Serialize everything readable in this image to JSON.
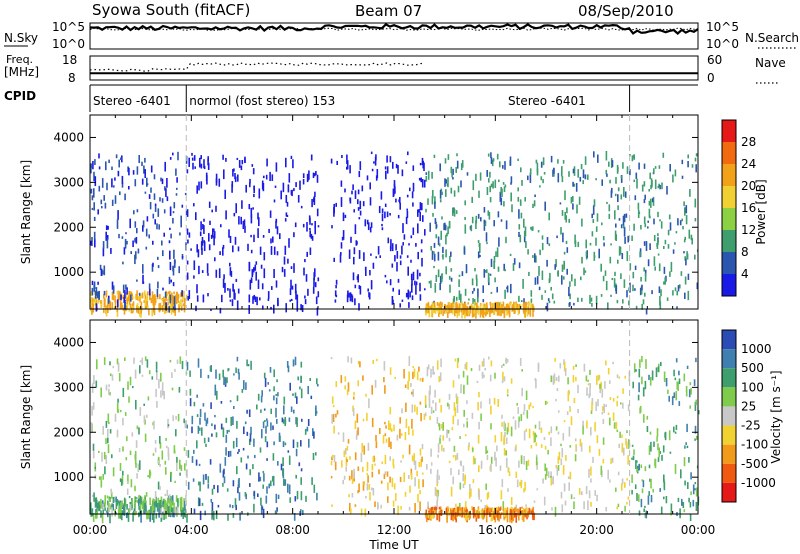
{
  "header": {
    "title": "Syowa South (fitACF)",
    "beam": "Beam 07",
    "date": "08/Sep/2010"
  },
  "noise_panel": {
    "left_label": "N.Sky",
    "right_label": "N.Search",
    "left_ticks": [
      "10^5",
      "10^0"
    ],
    "right_ticks": [
      "10^5",
      "10^0"
    ]
  },
  "freq_panel": {
    "left_label_line1": "Freq.",
    "left_label_line2": "[MHz]",
    "right_label": "Nave",
    "left_ticks": [
      "18",
      "8"
    ],
    "right_ticks": [
      "60",
      "0"
    ]
  },
  "cpid_panel": {
    "label": "CPID",
    "segments": [
      {
        "start_hour": 0.0,
        "end_hour": 3.8,
        "text": "Stereo -6401"
      },
      {
        "start_hour": 3.8,
        "end_hour": 21.3,
        "text": "normol (fost stereo) 153"
      },
      {
        "start_hour": 21.3,
        "end_hour": 24.0,
        "text": ""
      }
    ],
    "extra_label": {
      "hour": 16.5,
      "text": "Stereo -6401"
    }
  },
  "power_panel": {
    "ylabel": "Slant Range [km]",
    "colorbar_label": "Power [dB]",
    "colorbar_ticks": [
      "28",
      "24",
      "20",
      "16",
      "12",
      "8",
      "4"
    ],
    "colors": [
      "#e61919",
      "#f26a10",
      "#f2a219",
      "#f0d033",
      "#8cd143",
      "#3e9e6e",
      "#2b56b0",
      "#1a1ae6"
    ]
  },
  "velocity_panel": {
    "ylabel": "Slant Range [km]",
    "colorbar_label": "Velocity [m s⁻¹]",
    "colorbar_ticks": [
      "1000",
      "500",
      "100",
      "25",
      "-25",
      "-100",
      "-500",
      "-1000"
    ],
    "colors": [
      "#2b4cb5",
      "#4080b0",
      "#3e9e6e",
      "#7fcc4c",
      "#c8c8c8",
      "#f2d233",
      "#f29a1a",
      "#f05a10",
      "#e61919"
    ]
  },
  "xaxis": {
    "label": "Time UT",
    "tick_labels": [
      "00:00",
      "04:00",
      "08:00",
      "12:00",
      "16:00",
      "20:00",
      "00:00"
    ]
  },
  "chart_data": {
    "type": "heatmap",
    "x_unit": "hours UT",
    "x_range": [
      0,
      24
    ],
    "y_range_km": [
      180,
      4500
    ],
    "y_ticks": [
      1000,
      2000,
      3000,
      4000
    ],
    "noise_sky_level_log10": 4.0,
    "noise_search_level_log10": 3.8,
    "frequency_MHz": 10.8,
    "nave": 42,
    "dashed_markers_hour": [
      3.8,
      21.3
    ],
    "scatter_regions": [
      {
        "name": "near-range",
        "hour_range": [
          0.0,
          3.8
        ],
        "range_km": [
          180,
          600
        ],
        "power_dB": 24,
        "velocity": 100
      },
      {
        "name": "early",
        "hour_range": [
          0.0,
          3.8
        ],
        "range_km": [
          180,
          3700
        ],
        "power_dB": 8,
        "velocity": 25
      },
      {
        "name": "morning",
        "hour_range": [
          3.8,
          9.0
        ],
        "range_km": [
          180,
          3700
        ],
        "power_dB": 6,
        "velocity": 500
      },
      {
        "name": "midday",
        "hour_range": [
          9.5,
          13.2
        ],
        "range_km": [
          300,
          3700
        ],
        "power_dB": 6,
        "velocity": -100
      },
      {
        "name": "afternoon",
        "hour_range": [
          13.2,
          21.3
        ],
        "range_km": [
          300,
          3700
        ],
        "power_dB": 12,
        "velocity": -25
      },
      {
        "name": "afternoon near",
        "hour_range": [
          13.2,
          17.5
        ],
        "range_km": [
          180,
          350
        ],
        "power_dB": 26,
        "velocity": -500
      },
      {
        "name": "evening",
        "hour_range": [
          21.3,
          24.0
        ],
        "range_km": [
          180,
          3700
        ],
        "power_dB": 14,
        "velocity": 100
      }
    ]
  }
}
